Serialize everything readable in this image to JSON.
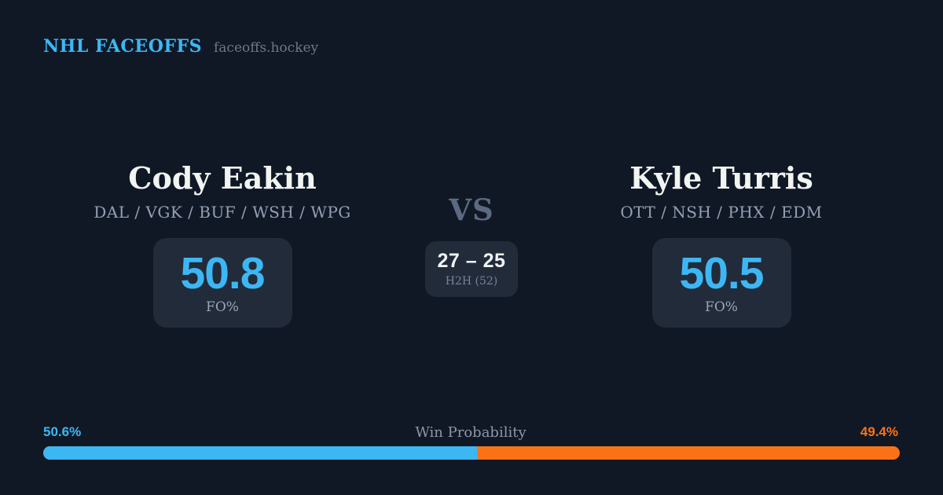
{
  "header": {
    "brand": "NHL FACEOFFS",
    "site": "faceoffs.hockey"
  },
  "matchup": {
    "player_left": {
      "name": "Cody Eakin",
      "teams": "DAL / VGK / BUF / WSH / WPG",
      "fo_value": "50.8",
      "fo_label": "FO%"
    },
    "versus_label": "VS",
    "h2h": {
      "score": "27 – 25",
      "label": "H2H (52)"
    },
    "player_right": {
      "name": "Kyle Turris",
      "teams": "OTT / NSH / PHX / EDM",
      "fo_value": "50.5",
      "fo_label": "FO%"
    }
  },
  "win_probability": {
    "title": "Win Probability",
    "left_pct": "50.6%",
    "right_pct": "49.4%",
    "left_value": 50.6,
    "right_value": 49.4,
    "left_width": "50.6%"
  },
  "colors": {
    "background": "#101826",
    "card": "#212b3a",
    "blue": "#3db7f4",
    "orange": "#f97316"
  }
}
